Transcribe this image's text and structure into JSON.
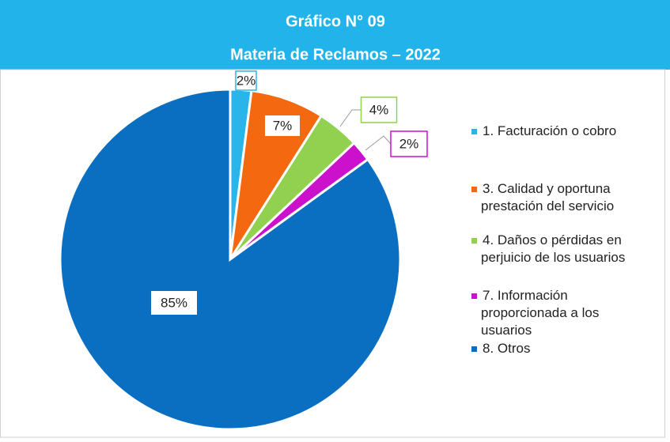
{
  "chart_data": {
    "type": "pie",
    "title": "Gráfico N° 09",
    "subtitle": "Materia de Reclamos – 2022",
    "categories": [
      "1. Facturación o cobro",
      "3. Calidad y oportuna prestación del servicio",
      "4. Daños o pérdidas en perjuicio de los usuarios",
      "7. Información proporcionada a los usuarios",
      "8. Otros"
    ],
    "values": [
      2,
      7,
      4,
      2,
      85
    ],
    "value_labels": [
      "2%",
      "7%",
      "4%",
      "2%",
      "85%"
    ],
    "colors": [
      "#29b5ea",
      "#f4690f",
      "#92d050",
      "#cc11cc",
      "#0a6fc0"
    ],
    "legend": "right"
  }
}
